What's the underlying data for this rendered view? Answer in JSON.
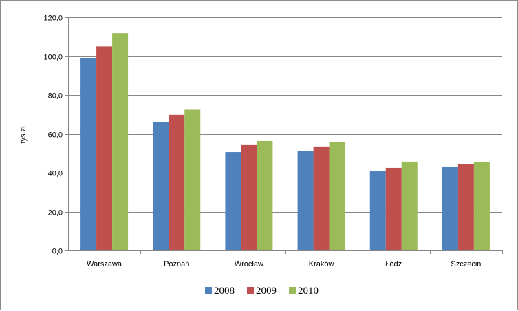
{
  "chart_data": {
    "type": "bar",
    "title": "",
    "xlabel": "",
    "ylabel": "tys.zł",
    "ylim": [
      0,
      120
    ],
    "yticks": [
      "0,0",
      "20,0",
      "40,0",
      "60,0",
      "80,0",
      "100,0",
      "120,0"
    ],
    "ytick_values": [
      0,
      20,
      40,
      60,
      80,
      100,
      120
    ],
    "categories": [
      "Warszawa",
      "Poznań",
      "Wrocław",
      "Kraków",
      "Łódź",
      "Szczecin"
    ],
    "series": [
      {
        "name": "2008",
        "color": "#4f81bd",
        "values": [
          99.0,
          66.2,
          50.6,
          51.3,
          40.7,
          43.2
        ]
      },
      {
        "name": "2009",
        "color": "#c0504d",
        "values": [
          105.0,
          69.8,
          54.2,
          53.5,
          42.5,
          44.3
        ]
      },
      {
        "name": "2010",
        "color": "#9bbb59",
        "values": [
          111.8,
          72.4,
          56.3,
          55.9,
          45.7,
          45.4
        ]
      }
    ],
    "grid": true,
    "legend_position": "bottom"
  }
}
